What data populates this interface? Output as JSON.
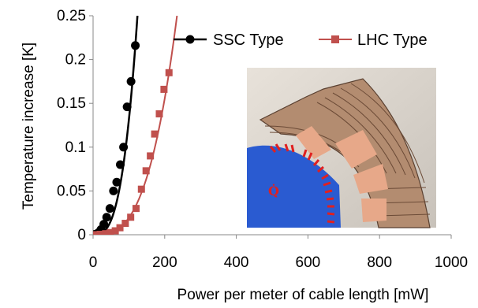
{
  "chart_data": {
    "type": "scatter",
    "xlabel": "Power per meter of cable length [mW]",
    "ylabel": "Temperature increase [K]",
    "xlim": [
      0,
      1000
    ],
    "ylim": [
      0,
      0.25
    ],
    "x_ticks": [
      "0",
      "200",
      "400",
      "600",
      "800",
      "1000"
    ],
    "y_ticks": [
      "0",
      "0.05",
      "0.1",
      "0.15",
      "0.2",
      "0.25"
    ],
    "grid": false,
    "legend_placement": "top-right",
    "inset_annotation": "Q̇",
    "series": [
      {
        "name": "SSC Type",
        "color": "#000000",
        "marker": "circle",
        "x": [
          2,
          8,
          15,
          22,
          30,
          38,
          47,
          57,
          66,
          76,
          85,
          95,
          106,
          118
        ],
        "y": [
          0.0002,
          0.0008,
          0.0025,
          0.006,
          0.012,
          0.02,
          0.03,
          0.05,
          0.06,
          0.08,
          0.1,
          0.146,
          0.175,
          0.216
        ]
      },
      {
        "name": "LHC Type",
        "color": "#c0504d",
        "marker": "square",
        "x": [
          5,
          20,
          35,
          48,
          62,
          75,
          90,
          105,
          120,
          135,
          148,
          160,
          172,
          185,
          198,
          212
        ],
        "y": [
          0.0001,
          0.0005,
          0.0012,
          0.0025,
          0.0045,
          0.008,
          0.013,
          0.02,
          0.03,
          0.052,
          0.073,
          0.09,
          0.115,
          0.138,
          0.166,
          0.185
        ]
      }
    ]
  }
}
